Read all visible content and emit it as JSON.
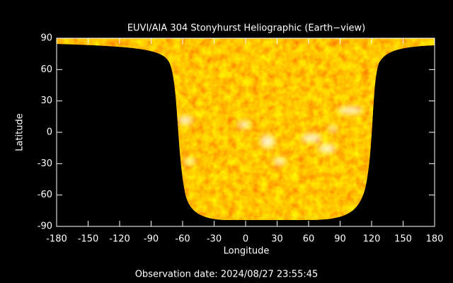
{
  "chart_data": {
    "type": "map",
    "title": "EUVI/AIA 304 Stonyhurst Heliographic (Earth−view)",
    "x_label": "Longitude",
    "y_label": "Latitude",
    "xlim": [
      -180,
      180
    ],
    "xticks": [
      -180,
      -150,
      -120,
      -90,
      -60,
      -30,
      0,
      30,
      60,
      90,
      120,
      150,
      180
    ],
    "ylim": [
      -90,
      90
    ],
    "yticks": [
      -90,
      -60,
      -30,
      0,
      30,
      60,
      90
    ],
    "annotation": "Observation date: 2024/08/27 23:55:45"
  }
}
